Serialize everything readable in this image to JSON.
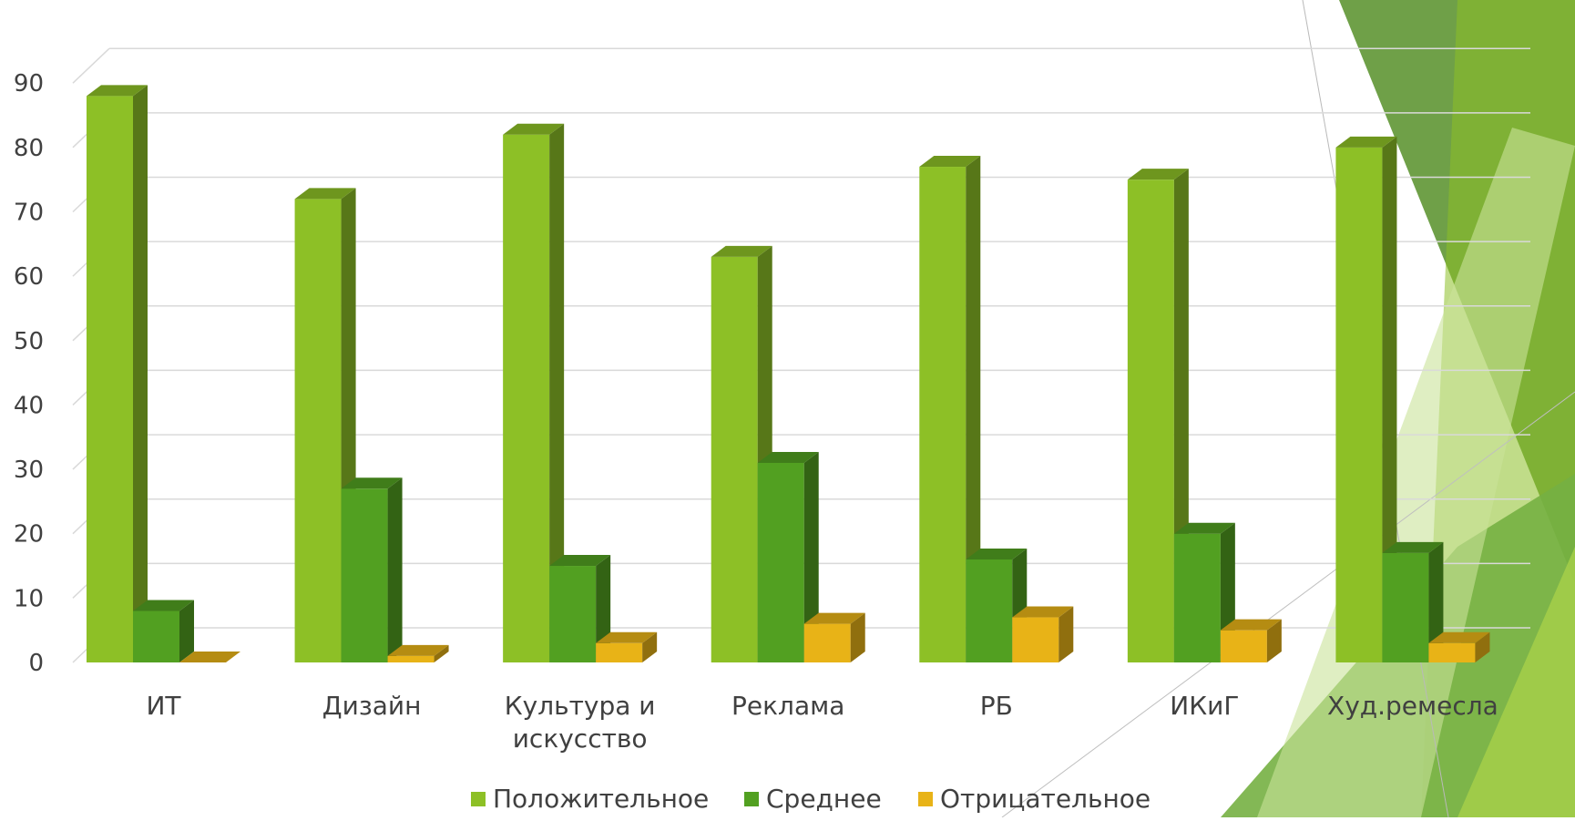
{
  "chart_data": {
    "type": "bar",
    "categories": [
      "ИТ",
      "Дизайн",
      "Культура и искусство",
      "Реклама",
      "РБ",
      "ИКиГ",
      "Худ.ремесла"
    ],
    "series": [
      {
        "name": "Положительное",
        "values": [
          88,
          72,
          82,
          63,
          77,
          75,
          80
        ]
      },
      {
        "name": "Среднее",
        "values": [
          8,
          27,
          15,
          31,
          16,
          20,
          17
        ]
      },
      {
        "name": "Отрицательное",
        "values": [
          0,
          1,
          3,
          6,
          7,
          5,
          3
        ]
      }
    ],
    "yticks": [
      "0",
      "10",
      "20",
      "30",
      "40",
      "50",
      "60",
      "70",
      "80",
      "90"
    ],
    "ylim": [
      0,
      93
    ],
    "grid": true,
    "legend_position": "bottom",
    "colors": [
      "#8DC026",
      "#52A021",
      "#E8B317"
    ],
    "style": "3d-clustered-column"
  }
}
